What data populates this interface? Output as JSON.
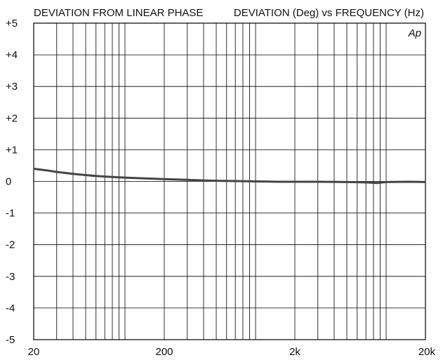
{
  "chart_data": {
    "type": "line",
    "title_left": "DEVIATION FROM LINEAR PHASE",
    "title_right": "DEVIATION (Deg) vs FREQUENCY (Hz)",
    "watermark": "Ap",
    "xscale": "log",
    "xlim": [
      20,
      20000
    ],
    "ylim": [
      -5,
      5
    ],
    "grid": true,
    "x_ticks": [
      20,
      200,
      2000,
      20000
    ],
    "x_tick_labels": [
      "20",
      "200",
      "2k",
      "20k"
    ],
    "y_ticks": [
      5,
      4,
      3,
      2,
      1,
      0,
      -1,
      -2,
      -3,
      -4,
      -5
    ],
    "y_tick_labels": [
      "+5",
      "+4",
      "+3",
      "+2",
      "+1",
      "0",
      "-1",
      "-2",
      "-3",
      "-4",
      "-5"
    ],
    "series": [
      {
        "color": "#444444",
        "x": [
          20,
          25,
          30,
          40,
          50,
          60,
          80,
          100,
          150,
          200,
          300,
          400,
          500,
          700,
          1000,
          1500,
          2000,
          3000,
          5000,
          7000,
          8500,
          10000,
          15000,
          20000
        ],
        "y": [
          0.4,
          0.35,
          0.3,
          0.24,
          0.2,
          0.17,
          0.14,
          0.12,
          0.09,
          0.07,
          0.05,
          0.03,
          0.02,
          0.01,
          0.0,
          -0.01,
          -0.01,
          -0.01,
          -0.02,
          -0.03,
          -0.05,
          -0.02,
          -0.01,
          -0.02
        ]
      }
    ]
  }
}
